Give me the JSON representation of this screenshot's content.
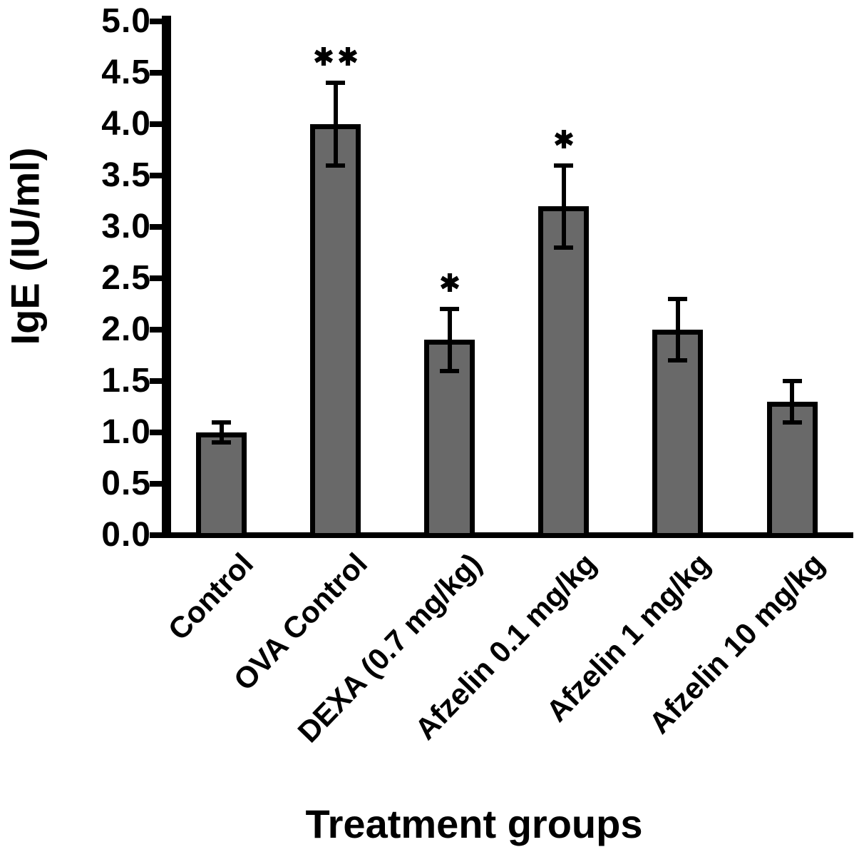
{
  "chart_data": {
    "type": "bar",
    "title": "",
    "xlabel": "Treatment groups",
    "ylabel": "IgE (IU/ml)",
    "categories": [
      "Control",
      "OVA Control",
      "DEXA (0.7 mg/kg)",
      "Afzelin 0.1 mg/kg",
      "Afzelin 1 mg/kg",
      "Afzelin 10 mg/kg"
    ],
    "series": [
      {
        "name": "IgE",
        "values": [
          1.0,
          4.0,
          1.9,
          3.2,
          2.0,
          1.3
        ],
        "errors": [
          0.1,
          0.4,
          0.3,
          0.4,
          0.3,
          0.2
        ],
        "significance": [
          "",
          "**",
          "*",
          "*",
          "",
          ""
        ]
      }
    ],
    "ylim": [
      0.0,
      5.0
    ],
    "ytick_step": 0.5,
    "ytick_labels": [
      "5.0",
      "4.5",
      "4.0",
      "3.5",
      "3.0",
      "2.5",
      "2.0",
      "1.5",
      "1.0",
      "0.5",
      "0.0"
    ],
    "grid": false,
    "legend": null,
    "bar_fill_color": "#696969",
    "bar_border_color": "#000000",
    "axis_color": "#000000",
    "error_bar_style": "caps both ends",
    "category_label_rotation_deg": 46
  }
}
